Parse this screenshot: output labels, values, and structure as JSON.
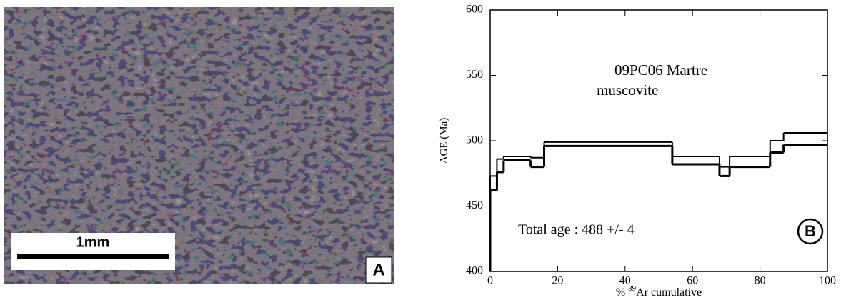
{
  "panel_a": {
    "scale_bar": "1mm",
    "label": "A"
  },
  "chart_data": {
    "type": "step",
    "title": "09PC06 Martre",
    "subtitle": "muscovite",
    "annotation": "Total age : 488 +/- 4",
    "panel_label": "B",
    "y_label": "AGE (Ma)",
    "x_label": [
      "% ",
      "39",
      "Ar cumulative"
    ],
    "x_edges": [
      0,
      2,
      4,
      12,
      16,
      54,
      68,
      71,
      83,
      87,
      100
    ],
    "series": [
      {
        "name": "upper",
        "color": "#000000",
        "values": [
          473,
          486,
          488,
          487,
          499,
          488,
          480,
          488,
          500,
          506
        ]
      },
      {
        "name": "lower",
        "color": "#000000",
        "values": [
          462,
          476,
          485,
          480,
          496,
          482,
          473,
          480,
          491,
          497
        ]
      }
    ],
    "xlim": [
      0,
      100
    ],
    "xticks": [
      0,
      20,
      40,
      60,
      80,
      100
    ],
    "ylim": [
      400,
      600
    ],
    "yticks": [
      400,
      450,
      500,
      550,
      600
    ]
  }
}
